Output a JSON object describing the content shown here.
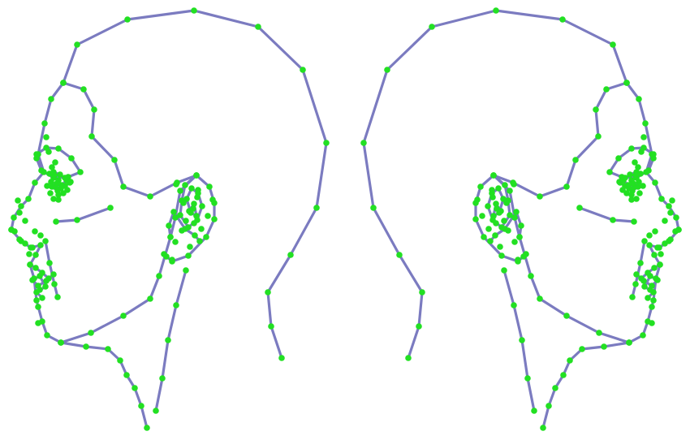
{
  "figure": {
    "left_profile_name": "head-profile-facing-left",
    "right_profile_name": "head-profile-facing-right",
    "colors": {
      "contour": "#7b7bc0",
      "landmark": "#22e022",
      "background": "#ffffff"
    }
  }
}
